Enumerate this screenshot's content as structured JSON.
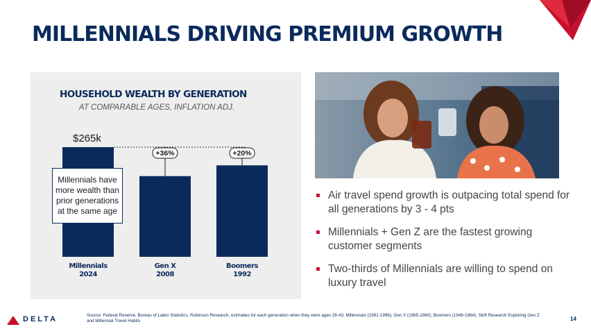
{
  "slide": {
    "title": "MILLENNIALS DRIVING PREMIUM GROWTH",
    "page_number": "14"
  },
  "chart_data": {
    "type": "bar",
    "title": "HOUSEHOLD WEALTH BY GENERATION",
    "subtitle": "AT COMPARABLE AGES, INFLATION ADJ.",
    "categories": [
      {
        "name": "Millennials",
        "year": "2024"
      },
      {
        "name": "Gen X",
        "year": "2008"
      },
      {
        "name": "Boomers",
        "year": "1992"
      }
    ],
    "values": [
      265,
      195,
      221
    ],
    "value_unit": "$k",
    "ylim": [
      0,
      265
    ],
    "data_labels": [
      {
        "category_index": 0,
        "text": "$265k"
      }
    ],
    "comparison_badges": [
      {
        "category_index": 1,
        "text": "+36%"
      },
      {
        "category_index": 2,
        "text": "+20%"
      }
    ],
    "callout": "Millennials have more wealth than prior generations at the same age",
    "colors": {
      "bar": "#0b2a5c",
      "panel": "#eeeeee"
    }
  },
  "photo": {
    "description_icon": "photo-two-women-toasting-drinks"
  },
  "bullets": [
    "Air travel spend growth is outpacing total spend for all generations by 3 - 4 pts",
    "Millennials + Gen Z are the fastest growing customer segments",
    "Two-thirds of Millennials are willing to spend on luxury travel"
  ],
  "footer": {
    "brand": "DELTA",
    "source": "Source: Federal Reserve, Bureau of Labor Statistics, Rubinson Research, estimates for each generation when they were ages 28-43; Millennials (1981-1996), Gen X (1965-1980), Boomers (1946-1964), Skift Research Exploring Gen Z and Millennial Travel Habits"
  },
  "colors": {
    "navy": "#0b2a5c",
    "red": "#c8102e",
    "text_gray": "#444444"
  }
}
